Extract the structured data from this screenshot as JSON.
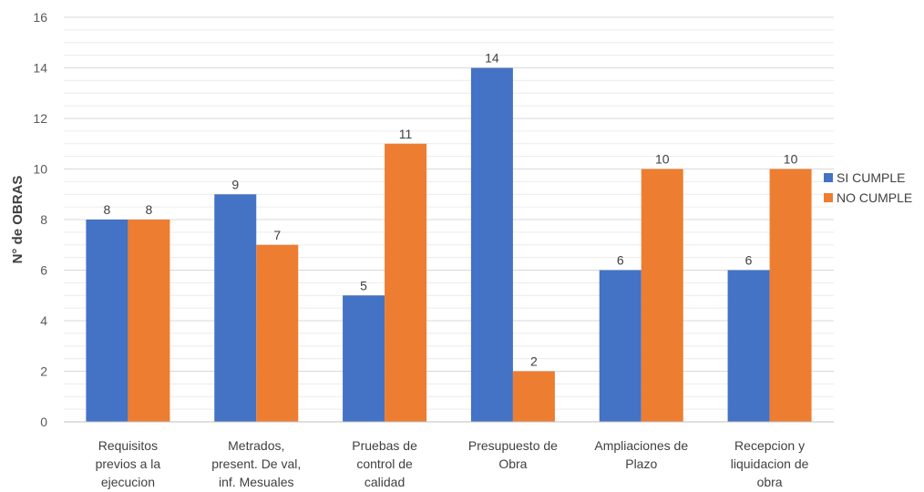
{
  "chart_data": {
    "type": "bar",
    "title": "",
    "xlabel": "",
    "ylabel": "N° de OBRAS",
    "ylim": [
      0,
      16
    ],
    "yticks": [
      0,
      2,
      4,
      6,
      8,
      10,
      12,
      14,
      16
    ],
    "grid": true,
    "legend_position": "right",
    "categories": [
      [
        "Requisitos",
        "previos a la",
        "ejecucion"
      ],
      [
        "Metrados,",
        "present. De val,",
        "inf. Mesuales"
      ],
      [
        "Pruebas de",
        "control de",
        "calidad"
      ],
      [
        "Presupuesto de",
        "Obra"
      ],
      [
        "Ampliaciones de",
        "Plazo"
      ],
      [
        "Recepcion y",
        "liquidacion de",
        "obra"
      ]
    ],
    "series": [
      {
        "name": "SI CUMPLE",
        "color": "#4472C4",
        "values": [
          8,
          9,
          5,
          14,
          6,
          6
        ]
      },
      {
        "name": "NO CUMPLE",
        "color": "#ED7D31",
        "values": [
          8,
          7,
          11,
          2,
          10,
          10
        ]
      }
    ]
  }
}
